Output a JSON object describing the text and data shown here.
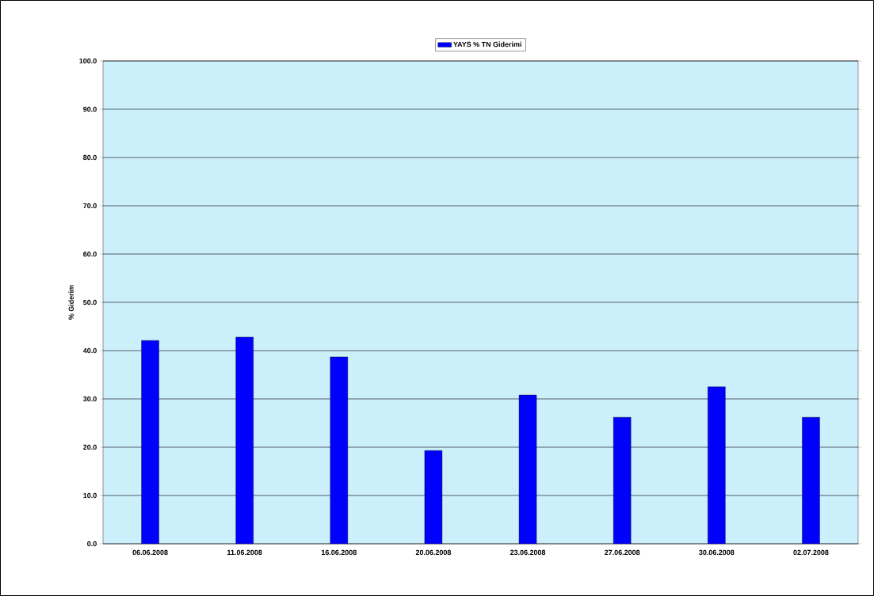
{
  "chart_data": {
    "type": "bar",
    "ylabel": "% Giderim",
    "categories": [
      "06.06.2008",
      "11.06.2008",
      "16.06.2008",
      "20.06.2008",
      "23.06.2008",
      "27.06.2008",
      "30.06.2008",
      "02.07.2008"
    ],
    "series": [
      {
        "name": "YAYS % TN Giderimi",
        "color": "#0000ff",
        "values": [
          42.1,
          42.8,
          38.7,
          19.3,
          30.8,
          26.2,
          32.5,
          26.2
        ]
      }
    ],
    "ylim": [
      0,
      100
    ],
    "yticks": [
      {
        "value": 0,
        "label": "0.0"
      },
      {
        "value": 10,
        "label": "10.0"
      },
      {
        "value": 20,
        "label": "20.0"
      },
      {
        "value": 30,
        "label": "30.0"
      },
      {
        "value": 40,
        "label": "40.0"
      },
      {
        "value": 50,
        "label": "50.0"
      },
      {
        "value": 60,
        "label": "60.0"
      },
      {
        "value": 70,
        "label": "70.0"
      },
      {
        "value": 80,
        "label": "80.0"
      },
      {
        "value": 90,
        "label": "90.0"
      },
      {
        "value": 100,
        "label": "100.0"
      }
    ],
    "grid": "y",
    "legend": "top"
  }
}
